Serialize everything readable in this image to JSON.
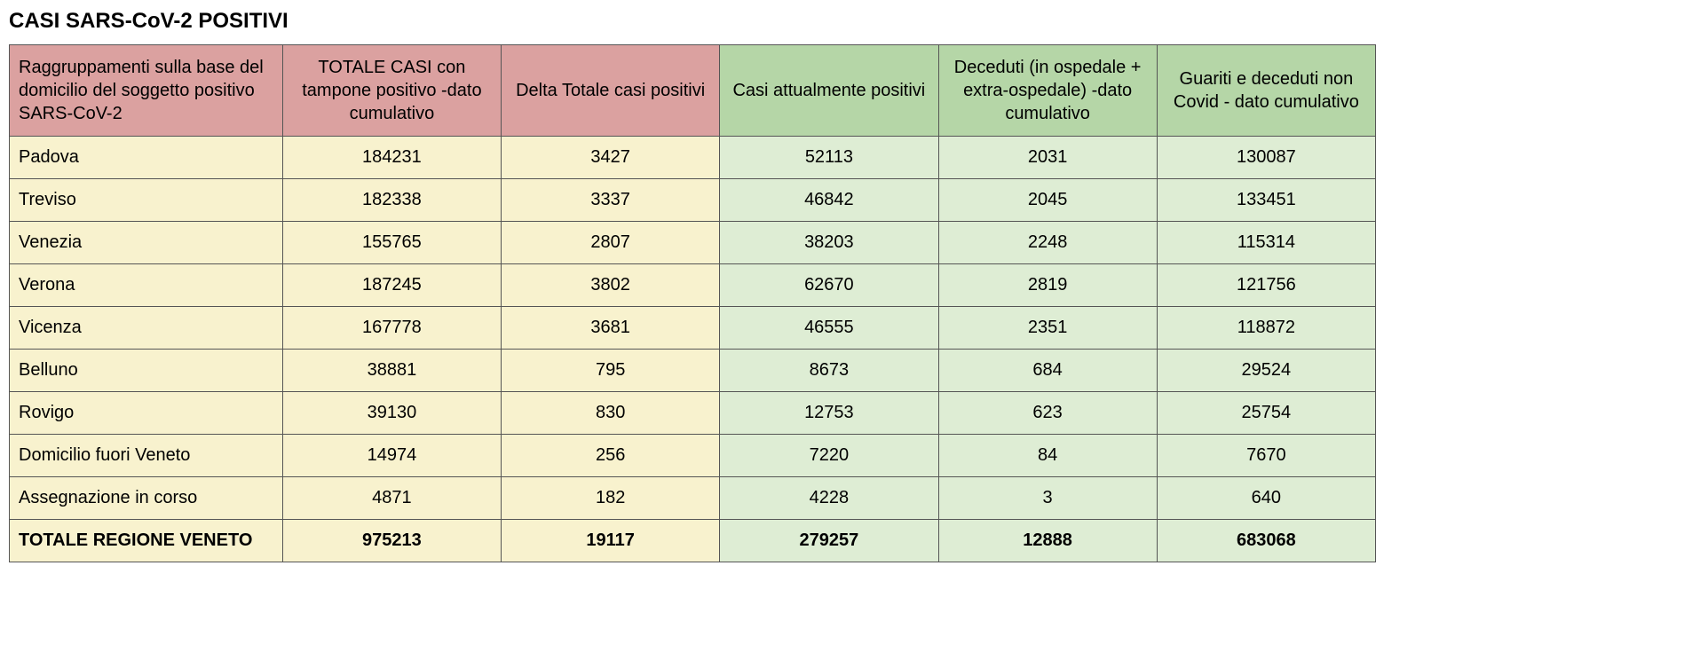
{
  "title": "CASI SARS-CoV-2 POSITIVI",
  "table": {
    "columns": [
      {
        "label": "Raggruppamenti sulla base del domicilio del soggetto positivo SARS-CoV-2",
        "header_color": "red"
      },
      {
        "label": "TOTALE CASI con tampone positivo -dato cumulativo",
        "header_color": "red"
      },
      {
        "label": "Delta Totale casi positivi",
        "header_color": "red"
      },
      {
        "label": "Casi attualmente positivi",
        "header_color": "green"
      },
      {
        "label": "Deceduti (in ospedale + extra-ospedale) -dato cumulativo",
        "header_color": "green"
      },
      {
        "label": "Guariti e deceduti non Covid - dato cumulativo",
        "header_color": "green"
      }
    ],
    "rows": [
      {
        "label": "Padova",
        "totale": "184231",
        "delta": "3427",
        "positivi": "52113",
        "deceduti": "2031",
        "guariti": "130087",
        "bold": false
      },
      {
        "label": "Treviso",
        "totale": "182338",
        "delta": "3337",
        "positivi": "46842",
        "deceduti": "2045",
        "guariti": "133451",
        "bold": false
      },
      {
        "label": "Venezia",
        "totale": "155765",
        "delta": "2807",
        "positivi": "38203",
        "deceduti": "2248",
        "guariti": "115314",
        "bold": false
      },
      {
        "label": "Verona",
        "totale": "187245",
        "delta": "3802",
        "positivi": "62670",
        "deceduti": "2819",
        "guariti": "121756",
        "bold": false
      },
      {
        "label": "Vicenza",
        "totale": "167778",
        "delta": "3681",
        "positivi": "46555",
        "deceduti": "2351",
        "guariti": "118872",
        "bold": false
      },
      {
        "label": "Belluno",
        "totale": "38881",
        "delta": "795",
        "positivi": "8673",
        "deceduti": "684",
        "guariti": "29524",
        "bold": false
      },
      {
        "label": "Rovigo",
        "totale": "39130",
        "delta": "830",
        "positivi": "12753",
        "deceduti": "623",
        "guariti": "25754",
        "bold": false
      },
      {
        "label": "Domicilio fuori Veneto",
        "totale": "14974",
        "delta": "256",
        "positivi": "7220",
        "deceduti": "84",
        "guariti": "7670",
        "bold": false
      },
      {
        "label": "Assegnazione in corso",
        "totale": "4871",
        "delta": "182",
        "positivi": "4228",
        "deceduti": "3",
        "guariti": "640",
        "bold": false
      },
      {
        "label": "TOTALE REGIONE VENETO",
        "totale": "975213",
        "delta": "19117",
        "positivi": "279257",
        "deceduti": "12888",
        "guariti": "683068",
        "bold": true
      }
    ],
    "header_colors": {
      "red": "#dba1a0",
      "green": "#b5d6a7"
    },
    "cell_colors": {
      "yellow": "#f8f2ce",
      "green": "#deedd4"
    },
    "border_color": "#555555",
    "title_fontsize": 24,
    "cell_fontsize": 20
  }
}
